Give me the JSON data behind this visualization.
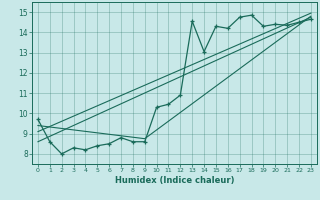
{
  "xlabel": "Humidex (Indice chaleur)",
  "bg_color": "#c8e8e8",
  "line_color": "#1a6b5a",
  "xlim": [
    -0.5,
    23.5
  ],
  "ylim": [
    7.5,
    15.5
  ],
  "xticks": [
    0,
    1,
    2,
    3,
    4,
    5,
    6,
    7,
    8,
    9,
    10,
    11,
    12,
    13,
    14,
    15,
    16,
    17,
    18,
    19,
    20,
    21,
    22,
    23
  ],
  "yticks": [
    8,
    9,
    10,
    11,
    12,
    13,
    14,
    15
  ],
  "line1_x": [
    0,
    1,
    2,
    3,
    4,
    5,
    6,
    7,
    8,
    9,
    10,
    11,
    12,
    13,
    14,
    15,
    16,
    17,
    18,
    19,
    20,
    21,
    22,
    23
  ],
  "line1_y": [
    9.7,
    8.6,
    8.0,
    8.3,
    8.2,
    8.4,
    8.5,
    8.8,
    8.6,
    8.6,
    10.3,
    10.45,
    10.9,
    14.55,
    13.05,
    14.3,
    14.2,
    14.75,
    14.85,
    14.3,
    14.4,
    14.35,
    14.5,
    14.65
  ],
  "line2_x": [
    0,
    23
  ],
  "line2_y": [
    8.6,
    14.75
  ],
  "line3_x": [
    0,
    23
  ],
  "line3_y": [
    9.1,
    14.95
  ],
  "line4_x": [
    0,
    9,
    23
  ],
  "line4_y": [
    9.4,
    8.75,
    14.8
  ]
}
